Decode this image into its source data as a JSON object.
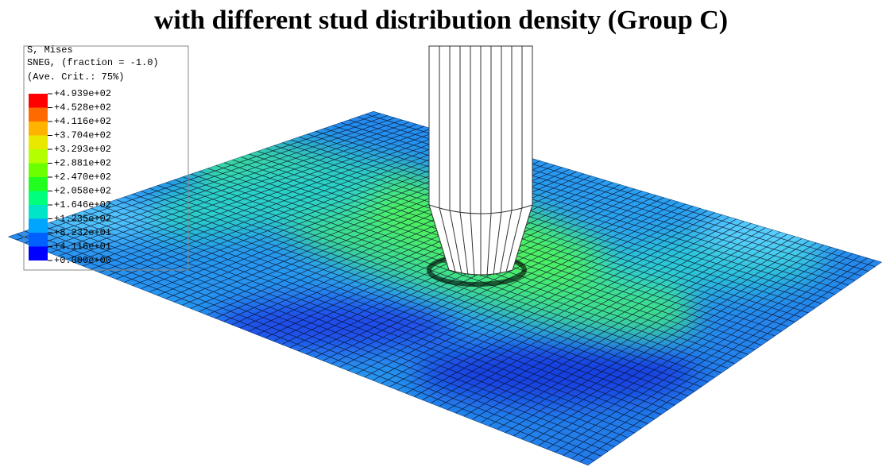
{
  "header": {
    "title": "with different stud distribution density (Group C)"
  },
  "legend": {
    "lines": [
      "S, Mises",
      "SNEG, (fraction = -1.0)",
      "(Ave. Crit.: 75%)"
    ],
    "levels": [
      "+4.939e+02",
      "+4.528e+02",
      "+4.116e+02",
      "+3.704e+02",
      "+3.293e+02",
      "+2.881e+02",
      "+2.470e+02",
      "+2.058e+02",
      "+1.646e+02",
      "+1.235e+02",
      "+8.232e+01",
      "+4.116e+01",
      "+0.000e+00"
    ]
  }
}
